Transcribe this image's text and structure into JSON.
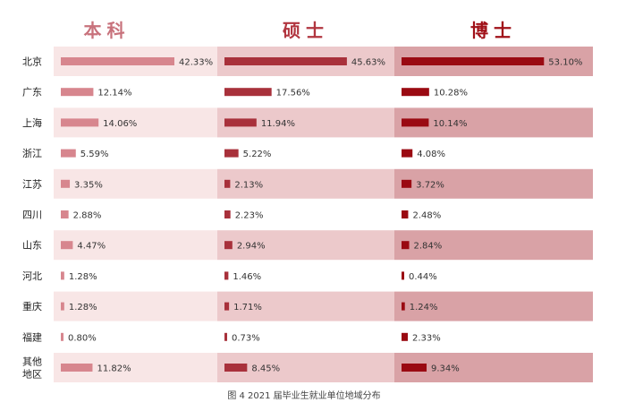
{
  "chart_data": {
    "type": "bar",
    "caption": "图 4   2021 届毕业生就业单位地域分布",
    "categories": [
      "北京",
      "广东",
      "上海",
      "浙江",
      "江苏",
      "四川",
      "山东",
      "河北",
      "重庆",
      "福建",
      "其他地区"
    ],
    "series": [
      {
        "name": "本科",
        "color": "#d7868e",
        "header_color": "#c8727c",
        "values": [
          42.33,
          12.14,
          14.06,
          5.59,
          3.35,
          2.88,
          4.47,
          1.28,
          1.28,
          0.8,
          11.82
        ],
        "labels": [
          "42.33%",
          "12.14%",
          "14.06%",
          "5.59%",
          "3.35%",
          "2.88%",
          "4.47%",
          "1.28%",
          "1.28%",
          "0.80%",
          "11.82%"
        ]
      },
      {
        "name": "硕士",
        "color": "#a8313b",
        "header_color": "#b1353f",
        "values": [
          45.63,
          17.56,
          11.94,
          5.22,
          2.13,
          2.23,
          2.94,
          1.46,
          1.71,
          0.73,
          8.45
        ],
        "labels": [
          "45.63%",
          "17.56%",
          "11.94%",
          "5.22%",
          "2.13%",
          "2.23%",
          "2.94%",
          "1.46%",
          "1.71%",
          "0.73%",
          "8.45%"
        ]
      },
      {
        "name": "博士",
        "color": "#9a0a12",
        "header_color": "#a01018",
        "values": [
          53.1,
          10.28,
          10.14,
          4.08,
          3.72,
          2.48,
          2.84,
          0.44,
          1.24,
          2.33,
          9.34
        ],
        "labels": [
          "53.10%",
          "10.28%",
          "10.14%",
          "4.08%",
          "3.72%",
          "2.48%",
          "2.84%",
          "0.44%",
          "1.24%",
          "2.33%",
          "9.34%"
        ]
      }
    ],
    "band_colors": [
      "#f8e6e6",
      "#ecc9cb",
      "#d9a2a6"
    ]
  }
}
